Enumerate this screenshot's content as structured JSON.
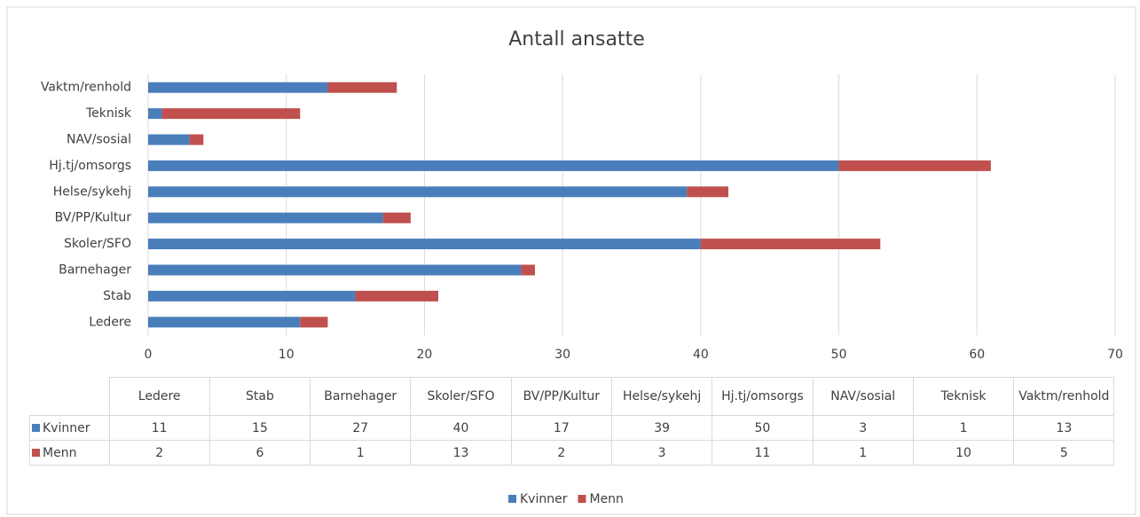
{
  "chart_data": {
    "type": "bar",
    "orientation": "horizontal",
    "stacked": true,
    "title": "Antall ansatte",
    "categories": [
      "Ledere",
      "Stab",
      "Barnehager",
      "Skoler/SFO",
      "BV/PP/Kultur",
      "Helse/sykehj",
      "Hj.tj/omsorgs",
      "NAV/sosial",
      "Teknisk",
      "Vaktm/renhold"
    ],
    "series": [
      {
        "name": "Kvinner",
        "color": "#4a7ebb",
        "values": [
          11,
          15,
          27,
          40,
          17,
          39,
          50,
          3,
          1,
          13
        ]
      },
      {
        "name": "Menn",
        "color": "#c0504d",
        "values": [
          2,
          6,
          1,
          13,
          2,
          3,
          11,
          1,
          10,
          5
        ]
      }
    ],
    "xlim": [
      0,
      70
    ],
    "xticks": [
      0,
      10,
      20,
      30,
      40,
      50,
      60,
      70
    ],
    "grid": true,
    "legend": "bottom",
    "data_table": true
  }
}
